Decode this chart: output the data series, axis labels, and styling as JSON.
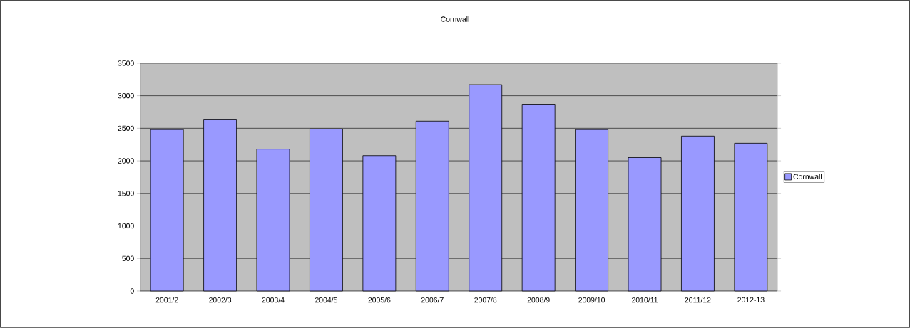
{
  "chart_data": {
    "type": "bar",
    "title": "Cornwall",
    "categories": [
      "2001/2",
      "2002/3",
      "2003/4",
      "2004/5",
      "2005/6",
      "2006/7",
      "2007/8",
      "2008/9",
      "2009/10",
      "2010/11",
      "2011/12",
      "2012-13"
    ],
    "series": [
      {
        "name": "Cornwall",
        "color": "#9999ff",
        "values": [
          2480,
          2640,
          2180,
          2490,
          2080,
          2610,
          3170,
          2870,
          2480,
          2050,
          2380,
          2270
        ]
      }
    ],
    "ylim": [
      0,
      3500
    ],
    "yticks": [
      0,
      500,
      1000,
      1500,
      2000,
      2500,
      3000,
      3500
    ],
    "grid": "y",
    "legend": "right"
  }
}
